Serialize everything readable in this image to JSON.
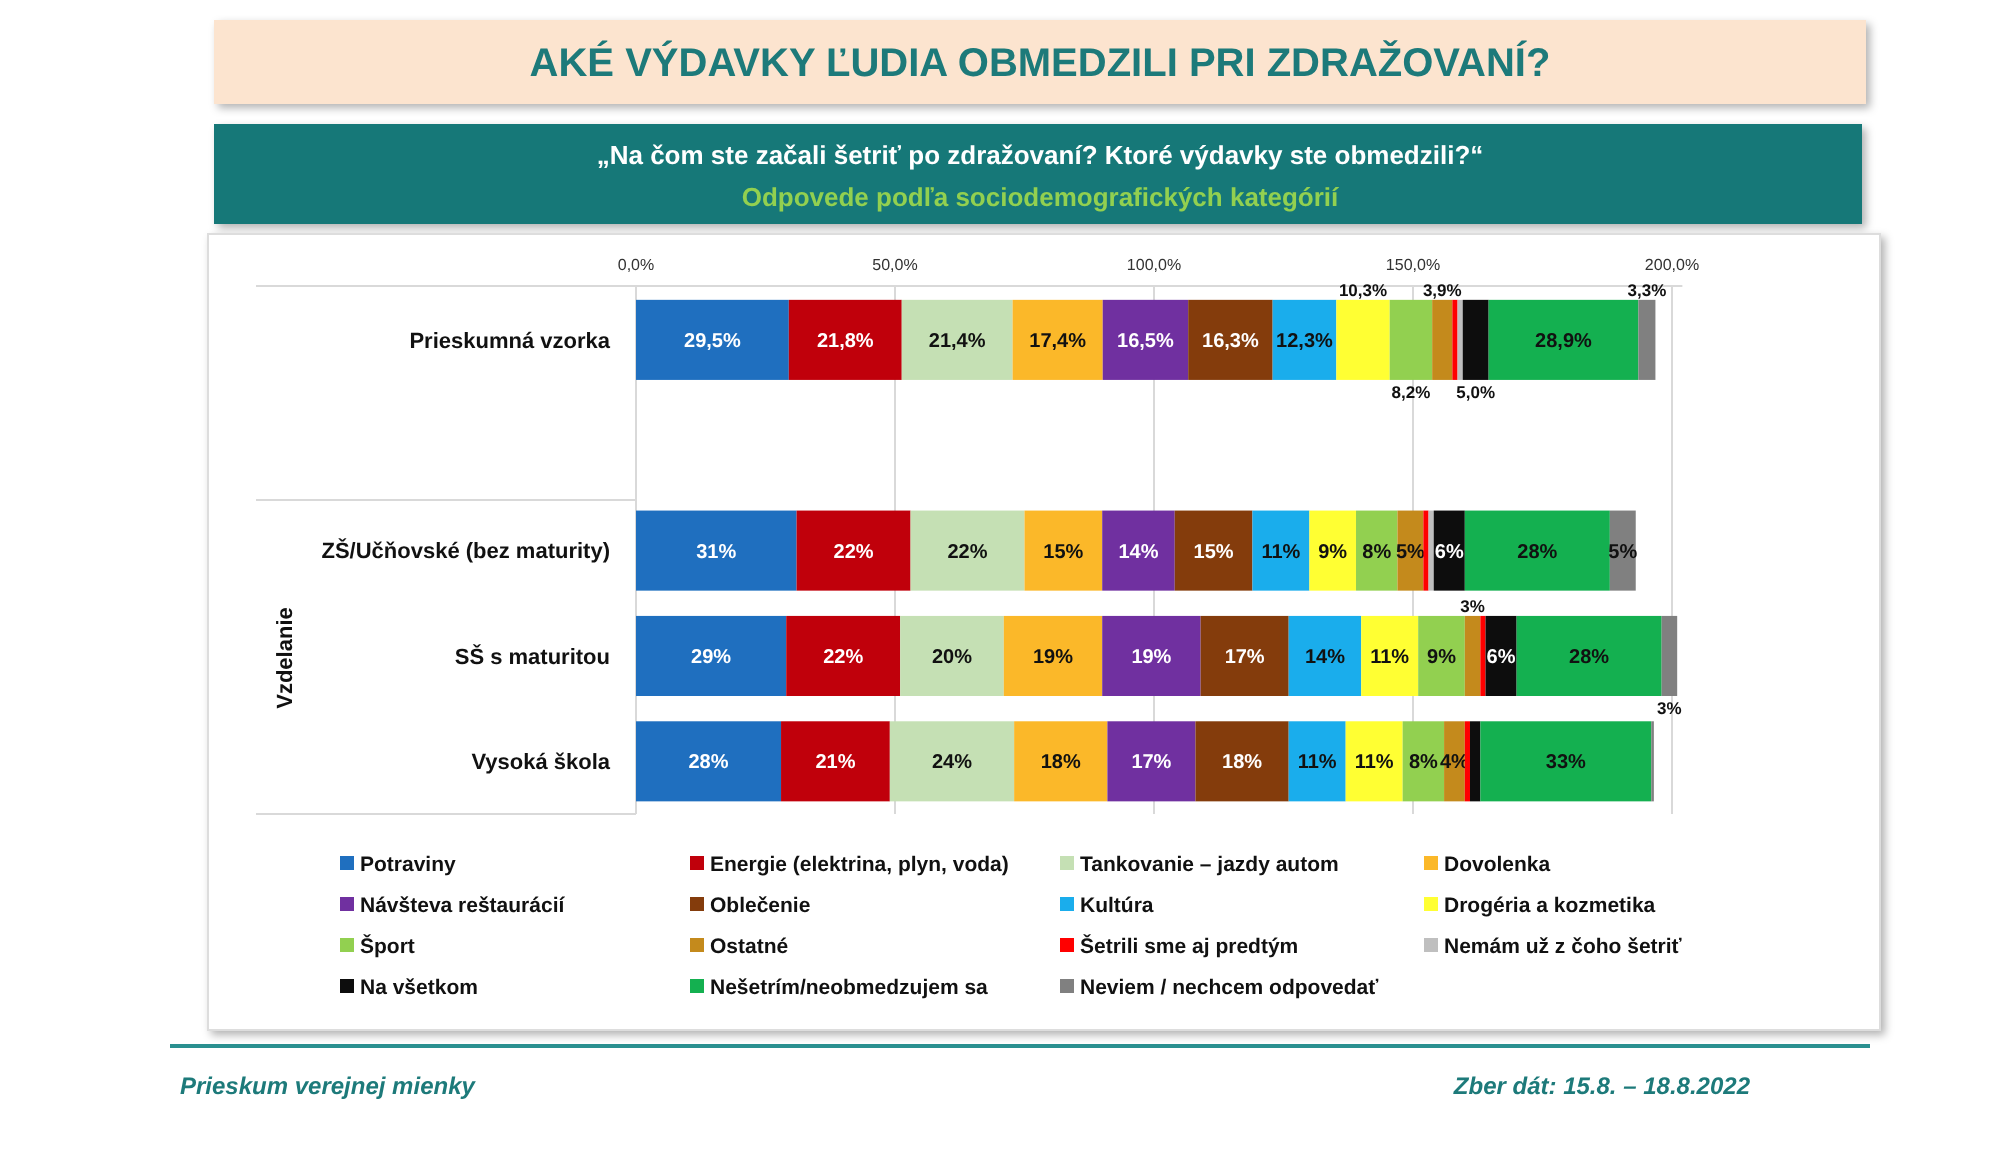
{
  "chart_data": {
    "type": "bar",
    "orientation": "horizontal",
    "stacked": true,
    "title": "AKÉ VÝDAVKY ĽUDIA OBMEDZILI PRI ZDRAŽOVANÍ?",
    "subtitle": "„Na čom ste začali šetriť po zdražovaní? Ktoré výdavky ste obmedzili?“",
    "annotations": [
      "Odpovede podľa sociodemografických kategórií",
      "Vzdelanie",
      "Prieskum verejnej mienky",
      "Zber dát: 15.8. – 18.8.2022"
    ],
    "categories": [
      "Prieskumná vzorka",
      null,
      "ZŠ/Učňovské (bez maturity)",
      "SŠ s maturitou",
      "Vysoká škola"
    ],
    "xlim": [
      0,
      202
    ],
    "xticks": [
      {
        "value": 0,
        "label": "0,0%"
      },
      {
        "value": 50,
        "label": "50,0%"
      },
      {
        "value": 100,
        "label": "100,0%"
      },
      {
        "value": 150,
        "label": "150,0%"
      },
      {
        "value": 200,
        "label": "200,0%"
      }
    ],
    "grid": "x",
    "legend": "bottom",
    "series": [
      {
        "name": "Potraviny",
        "color": "#1f6fbf",
        "values": [
          29.5,
          null,
          31,
          29,
          28
        ],
        "value_labels": [
          "29,5%",
          null,
          "31%",
          "29%",
          "28%"
        ]
      },
      {
        "name": "Energie (elektrina, plyn, voda)",
        "color": "#c0000b",
        "values": [
          21.8,
          null,
          22,
          22,
          21
        ],
        "value_labels": [
          "21,8%",
          null,
          "22%",
          "22%",
          "21%"
        ]
      },
      {
        "name": "Tankovanie – jazdy autom",
        "color": "#c5e0b4",
        "values": [
          21.4,
          null,
          22,
          20,
          24
        ],
        "value_labels": [
          "21,4%",
          null,
          "22%",
          "20%",
          "24%"
        ]
      },
      {
        "name": "Dovolenka",
        "color": "#fbb829",
        "values": [
          17.4,
          null,
          15,
          19,
          18
        ],
        "value_labels": [
          "17,4%",
          null,
          "15%",
          "19%",
          "18%"
        ]
      },
      {
        "name": "Návšteva reštaurácií",
        "color": "#7030a0",
        "values": [
          16.5,
          null,
          14,
          19,
          17
        ],
        "value_labels": [
          "16,5%",
          null,
          "14%",
          "19%",
          "17%"
        ]
      },
      {
        "name": "Oblečenie",
        "color": "#843c0c",
        "values": [
          16.3,
          null,
          15,
          17,
          18
        ],
        "value_labels": [
          "16,3%",
          null,
          "15%",
          "17%",
          "18%"
        ]
      },
      {
        "name": "Kultúra",
        "color": "#1aadec",
        "values": [
          12.3,
          null,
          11,
          14,
          11
        ],
        "value_labels": [
          "12,3%",
          null,
          "11%",
          "14%",
          "11%"
        ]
      },
      {
        "name": "Drogéria a kozmetika",
        "color": "#ffff33",
        "values": [
          10.3,
          null,
          9,
          11,
          11
        ],
        "value_labels": [
          "10,3%",
          null,
          "9%",
          "11%",
          "11%"
        ]
      },
      {
        "name": "Šport",
        "color": "#92d050",
        "values": [
          8.2,
          null,
          8,
          9,
          8
        ],
        "value_labels": [
          "8,2%",
          null,
          "8%",
          "9%",
          "8%"
        ]
      },
      {
        "name": "Ostatné",
        "color": "#c48a1c",
        "values": [
          3.9,
          null,
          5,
          3,
          4
        ],
        "value_labels": [
          "3,9%",
          null,
          "5%",
          "3%",
          "4%"
        ]
      },
      {
        "name": "Šetrili sme aj predtým",
        "color": "#ff0000",
        "values": [
          1,
          null,
          1,
          1,
          1
        ],
        "value_labels": [
          null,
          null,
          null,
          null,
          null
        ]
      },
      {
        "name": "Nemám už z čoho šetriť",
        "color": "#bfbfbf",
        "values": [
          1,
          null,
          1,
          null,
          null
        ],
        "value_labels": [
          null,
          null,
          null,
          null,
          null
        ]
      },
      {
        "name": "Na všetkom",
        "color": "#0d0d0d",
        "values": [
          5,
          null,
          6,
          6,
          2
        ],
        "value_labels": [
          "5,0%",
          null,
          "6%",
          "6%",
          null
        ]
      },
      {
        "name": "Nešetrím/neobmedzujem sa",
        "color": "#14b050",
        "values": [
          28.9,
          null,
          28,
          28,
          33
        ],
        "value_labels": [
          "28,9%",
          null,
          "28%",
          "28%",
          "33%"
        ]
      },
      {
        "name": "Neviem / nechcem odpovedať",
        "color": "#808080",
        "values": [
          3.3,
          null,
          5,
          3,
          0.5
        ],
        "value_labels": [
          "3,3%",
          null,
          "5%",
          "3%",
          null
        ]
      }
    ]
  }
}
